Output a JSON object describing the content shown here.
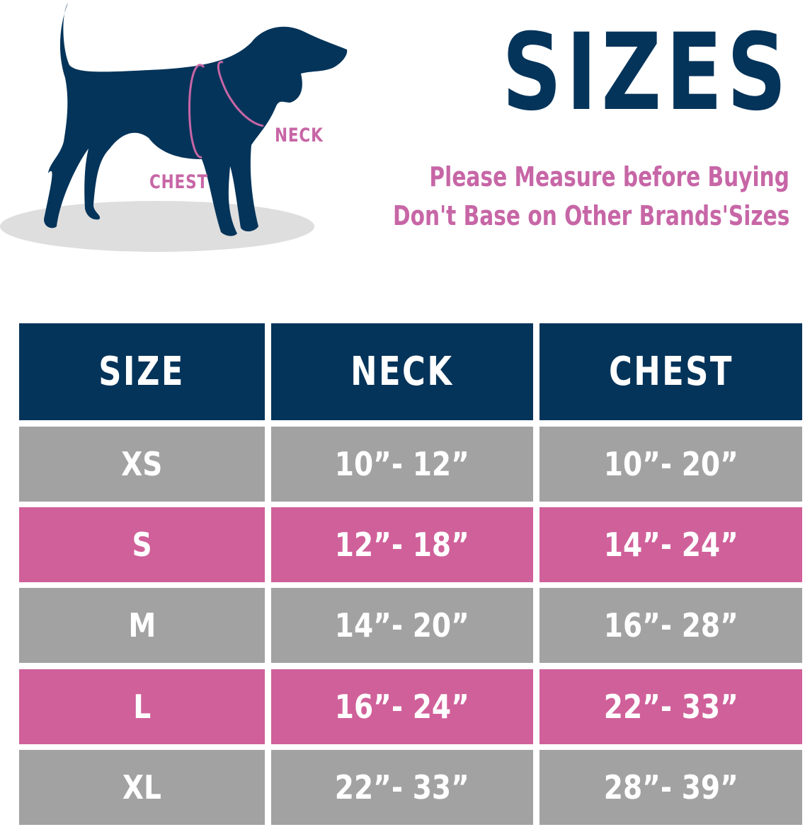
{
  "illustration": {
    "neck_label": "NECK",
    "chest_label": "CHEST"
  },
  "header": {
    "title": "SIZES",
    "line1": "Please Measure before Buying",
    "line2": "Don't Base on Other Brands'Sizes"
  },
  "colors": {
    "navy": "#05345a",
    "gray": "#a2a2a2",
    "pink": "#d0609a"
  },
  "table": {
    "columns": [
      "SIZE",
      "NECK",
      "CHEST"
    ],
    "rows": [
      [
        "XS",
        "10”- 12”",
        "10”- 20”"
      ],
      [
        "S",
        "12”- 18”",
        "14”- 24”"
      ],
      [
        "M",
        "14”- 20”",
        "16”- 28”"
      ],
      [
        "L",
        "16”- 24”",
        "22”- 33”"
      ],
      [
        "XL",
        "22”- 33”",
        "28”- 39”"
      ]
    ]
  }
}
